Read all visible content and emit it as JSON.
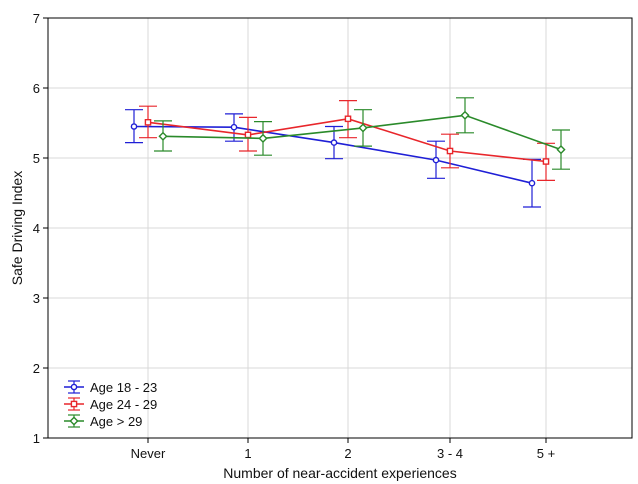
{
  "chart_data": {
    "type": "line",
    "title": "",
    "xlabel": "Number of near-accident experiences",
    "ylabel": "Safe Driving Index",
    "categories": [
      "Never",
      "1",
      "2",
      "3 - 4",
      "5 +"
    ],
    "ylim": [
      1,
      7
    ],
    "yticks": [
      1,
      2,
      3,
      4,
      5,
      6,
      7
    ],
    "grid": true,
    "legend_position": "bottom-left",
    "series": [
      {
        "name": "Age 18 - 23",
        "color": "#1f1fd6",
        "marker": "circle",
        "values": [
          5.45,
          5.44,
          5.22,
          4.97,
          4.64
        ],
        "err_low": [
          5.22,
          5.24,
          4.99,
          4.71,
          4.3
        ],
        "err_high": [
          5.69,
          5.63,
          5.45,
          5.24,
          4.98
        ]
      },
      {
        "name": "Age 24 - 29",
        "color": "#e8262b",
        "marker": "square",
        "values": [
          5.51,
          5.33,
          5.56,
          5.1,
          4.95
        ],
        "err_low": [
          5.29,
          5.1,
          5.29,
          4.86,
          4.68
        ],
        "err_high": [
          5.74,
          5.58,
          5.82,
          5.34,
          5.21
        ]
      },
      {
        "name": "Age > 29",
        "color": "#2a8a2a",
        "marker": "diamond",
        "values": [
          5.31,
          5.28,
          5.43,
          5.61,
          5.12
        ],
        "err_low": [
          5.1,
          5.04,
          5.17,
          5.36,
          4.84
        ],
        "err_high": [
          5.53,
          5.52,
          5.69,
          5.86,
          5.4
        ]
      }
    ]
  }
}
